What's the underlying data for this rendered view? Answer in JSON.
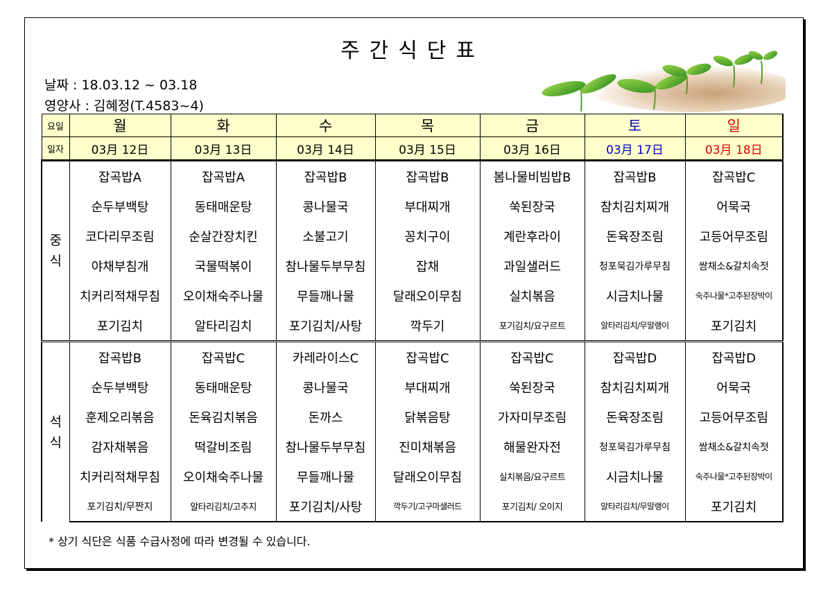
{
  "title": "주간식단표",
  "date_line": "날짜 : 18.03.12 ~ 03.18",
  "dietitian_line": "영양사 : 김혜정(T.4583~4)",
  "labels": {
    "day": "요일",
    "date": "일자",
    "lunch": "중식",
    "dinner": "석식"
  },
  "days": [
    {
      "day": "월",
      "date": "03月 12日",
      "color": "#000000"
    },
    {
      "day": "화",
      "date": "03月 13日",
      "color": "#000000"
    },
    {
      "day": "수",
      "date": "03月 14日",
      "color": "#000000"
    },
    {
      "day": "목",
      "date": "03月 15日",
      "color": "#000000"
    },
    {
      "day": "금",
      "date": "03月 16日",
      "color": "#000000"
    },
    {
      "day": "토",
      "date": "03月 17日",
      "color": "#0000cc"
    },
    {
      "day": "일",
      "date": "03月 18日",
      "color": "#dd0000"
    }
  ],
  "lunch": [
    [
      "잡곡밥A",
      "잡곡밥A",
      "잡곡밥B",
      "잡곡밥B",
      "봄나물비빔밥B",
      "잡곡밥B",
      "잡곡밥C"
    ],
    [
      "순두부백탕",
      "동태매운탕",
      "콩나물국",
      "부대찌개",
      "쑥된장국",
      "참치김치찌개",
      "어묵국"
    ],
    [
      "코다리무조림",
      "순살간장치킨",
      "소불고기",
      "꽁치구이",
      "계란후라이",
      "돈육장조림",
      "고등어무조림"
    ],
    [
      "야채부침개",
      "국물떡볶이",
      "참나물두부무침",
      "잡채",
      "과일샐러드",
      "청포묵김가루무침",
      "쌈채소&갈치속젓"
    ],
    [
      "치커리적채무침",
      "오이채숙주나물",
      "무들깨나물",
      "달래오이무침",
      "실치볶음",
      "시금치나물",
      "숙주나물*고추된장박이"
    ],
    [
      "포기김치",
      "알타리김치",
      "포기김치/사탕",
      "깍두기",
      "포기김치/요구르트",
      "알타리김치/무말랭이",
      "포기김치"
    ]
  ],
  "dinner": [
    [
      "잡곡밥B",
      "잡곡밥C",
      "카레라이스C",
      "잡곡밥C",
      "잡곡밥C",
      "잡곡밥D",
      "잡곡밥D"
    ],
    [
      "순두부백탕",
      "동태매운탕",
      "콩나물국",
      "부대찌개",
      "쑥된장국",
      "참치김치찌개",
      "어묵국"
    ],
    [
      "훈제오리볶음",
      "돈육김치볶음",
      "돈까스",
      "닭볶음탕",
      "가자미무조림",
      "돈육장조림",
      "고등어무조림"
    ],
    [
      "감자채볶음",
      "떡갈비조림",
      "참나물두부무침",
      "진미채볶음",
      "해물완자전",
      "청포묵김가루무침",
      "쌈채소&갈치속젓"
    ],
    [
      "치커리적채무침",
      "오이채숙주나물",
      "무들깨나물",
      "달래오이무침",
      "실치볶음/요구르트",
      "시금치나물",
      "숙주나물*고추된장박이"
    ],
    [
      "포기김치/무짠지",
      "알타리김치/고추지",
      "포기김치/사탕",
      "깍두기/고구마샐러드",
      "포기김치/ 오이지",
      "알타리김치/무말랭이",
      "포기김치"
    ]
  ],
  "note": "* 상기 식단은 식품 수급사정에 따라 변경될 수 있습니다.",
  "colors": {
    "header_bg": "#ffffcc",
    "saturday": "#0000cc",
    "sunday": "#dd0000"
  },
  "decoration_icon": "green-sprouts-illustration"
}
